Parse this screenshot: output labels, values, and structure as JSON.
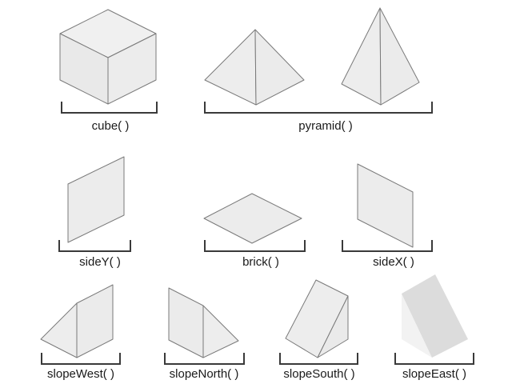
{
  "colors": {
    "face": "#ebebeb",
    "face_dark": "#dcdcdc",
    "face_light": "#f2f2f2",
    "stroke": "#7a7a7a",
    "bracket": "#3a3a3a",
    "text": "#1a1a1a"
  },
  "functions": {
    "cube": "cube( )",
    "pyramid": "pyramid( )",
    "sideY": "sideY( )",
    "brick": "brick( )",
    "sideX": "sideX( )",
    "slopeWest": "slopeWest( )",
    "slopeNorth": "slopeNorth( )",
    "slopeSouth": "slopeSouth( )",
    "slopeEast": "slopeEast( )"
  }
}
